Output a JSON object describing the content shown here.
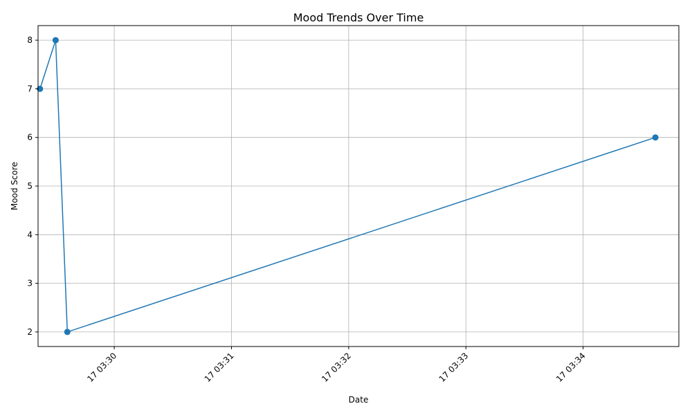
{
  "chart_data": {
    "type": "line",
    "title": "Mood Trends Over Time",
    "xlabel": "Date",
    "ylabel": "Mood Score",
    "x_time_ticks": [
      "03:30",
      "03:31",
      "03:32",
      "03:33",
      "03:34"
    ],
    "x_tick_labels": [
      "17 03:30",
      "17 03:31",
      "17 03:32",
      "17 03:33",
      "17 03:34"
    ],
    "xlim": [
      "03:29:21",
      "03:34:49"
    ],
    "ylim": [
      1.7,
      8.3
    ],
    "y_ticks": [
      2,
      3,
      4,
      5,
      6,
      7,
      8
    ],
    "grid": true,
    "series": [
      {
        "x": [
          "03:29:22",
          "03:29:30",
          "03:29:36",
          "03:34:37"
        ],
        "values": [
          7,
          8,
          2,
          6
        ],
        "color": "#1f77b4",
        "marker": "circle"
      }
    ]
  }
}
